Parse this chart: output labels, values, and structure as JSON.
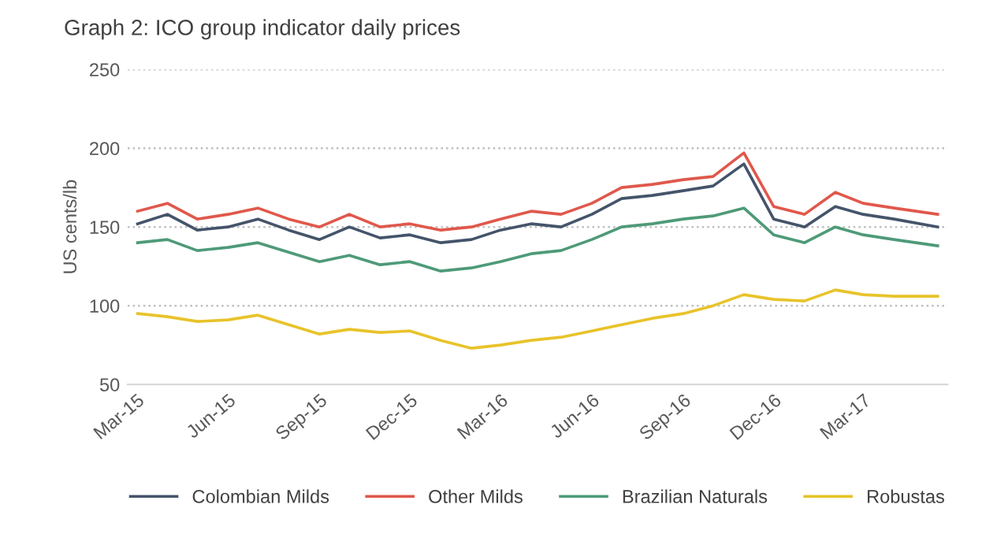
{
  "chart_data": {
    "type": "line",
    "title": "Graph 2: ICO group indicator daily prices",
    "ylabel": "US cents/lb",
    "x": [
      "2015-03-02",
      "2015-04-01",
      "2015-05-01",
      "2015-06-01",
      "2015-07-01",
      "2015-08-01",
      "2015-09-01",
      "2015-10-01",
      "2015-11-01",
      "2015-12-01",
      "2016-01-01",
      "2016-02-01",
      "2016-03-01",
      "2016-04-01",
      "2016-05-01",
      "2016-06-01",
      "2016-07-01",
      "2016-08-01",
      "2016-09-01",
      "2016-10-01",
      "2016-11-01",
      "2016-12-01",
      "2017-01-01",
      "2017-02-01",
      "2017-03-01",
      "2017-04-01",
      "2017-05-15"
    ],
    "series": [
      {
        "name": "Colombian Milds",
        "color": "#44546a",
        "values": [
          152,
          158,
          148,
          150,
          155,
          148,
          142,
          150,
          143,
          145,
          140,
          142,
          148,
          152,
          150,
          158,
          168,
          170,
          173,
          176,
          190,
          155,
          150,
          163,
          158,
          155,
          150
        ]
      },
      {
        "name": "Other Milds",
        "color": "#e0584b",
        "values": [
          160,
          165,
          155,
          158,
          162,
          155,
          150,
          158,
          150,
          152,
          148,
          150,
          155,
          160,
          158,
          165,
          175,
          177,
          180,
          182,
          197,
          163,
          158,
          172,
          165,
          162,
          158
        ]
      },
      {
        "name": "Brazilian Naturals",
        "color": "#4e9a78",
        "values": [
          140,
          142,
          135,
          137,
          140,
          134,
          128,
          132,
          126,
          128,
          122,
          124,
          128,
          133,
          135,
          142,
          150,
          152,
          155,
          157,
          162,
          145,
          140,
          150,
          145,
          142,
          138
        ]
      },
      {
        "name": "Robustas",
        "color": "#e8c32a",
        "values": [
          95,
          93,
          90,
          91,
          94,
          88,
          82,
          85,
          83,
          84,
          78,
          73,
          75,
          78,
          80,
          84,
          88,
          92,
          95,
          100,
          107,
          104,
          103,
          110,
          107,
          106,
          106
        ]
      }
    ],
    "xlim": [
      "2015-02-20",
      "2017-05-25"
    ],
    "xticks": [
      {
        "value": "2015-03-01",
        "label": "Mar-15"
      },
      {
        "value": "2015-06-01",
        "label": "Jun-15"
      },
      {
        "value": "2015-09-01",
        "label": "Sep-15"
      },
      {
        "value": "2015-12-01",
        "label": "Dec-15"
      },
      {
        "value": "2016-03-01",
        "label": "Mar-16"
      },
      {
        "value": "2016-06-01",
        "label": "Jun-16"
      },
      {
        "value": "2016-09-01",
        "label": "Sep-16"
      },
      {
        "value": "2016-12-01",
        "label": "Dec-16"
      },
      {
        "value": "2017-03-01",
        "label": "Mar-17"
      }
    ],
    "ylim": [
      50,
      250
    ],
    "yticks": [
      50,
      100,
      150,
      200,
      250
    ],
    "grid": "y",
    "legend": "bottom",
    "marker": "none",
    "line_style": "solid"
  }
}
